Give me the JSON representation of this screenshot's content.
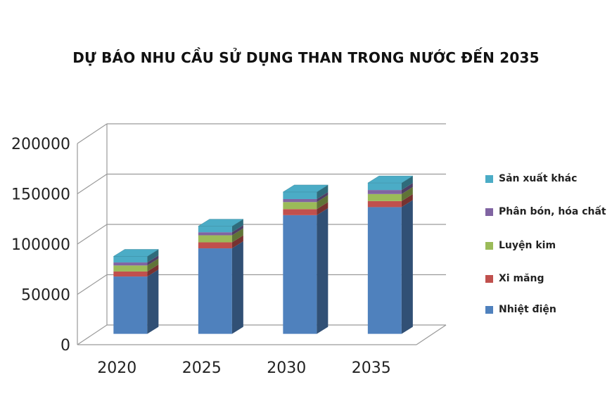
{
  "chart_data": {
    "type": "bar",
    "stacked": true,
    "three_d": true,
    "title": "DỰ BÁO NHU CẦU SỬ DỤNG THAN TRONG NƯỚC ĐẾN 2035",
    "categories": [
      "2020",
      "2025",
      "2030",
      "2035"
    ],
    "y_ticks": [
      "0",
      "50000",
      "100000",
      "150000",
      "200000"
    ],
    "ylim": [
      0,
      200000
    ],
    "grid": true,
    "legend_position": "right",
    "series": [
      {
        "name": "Nhiệt điện",
        "color": "#4f81bd",
        "values": [
          57000,
          85000,
          118000,
          126000
        ]
      },
      {
        "name": "Xi măng",
        "color": "#c0504d",
        "values": [
          5000,
          6000,
          6000,
          6000
        ]
      },
      {
        "name": "Luyện kim",
        "color": "#9bbb59",
        "values": [
          6000,
          7000,
          7000,
          7000
        ]
      },
      {
        "name": "Phân bón, hóa chất",
        "color": "#8064a2",
        "values": [
          3000,
          3000,
          3000,
          4000
        ]
      },
      {
        "name": "Sản xuất khác",
        "color": "#4bacc6",
        "values": [
          6000,
          6000,
          7000,
          7000
        ]
      }
    ]
  }
}
